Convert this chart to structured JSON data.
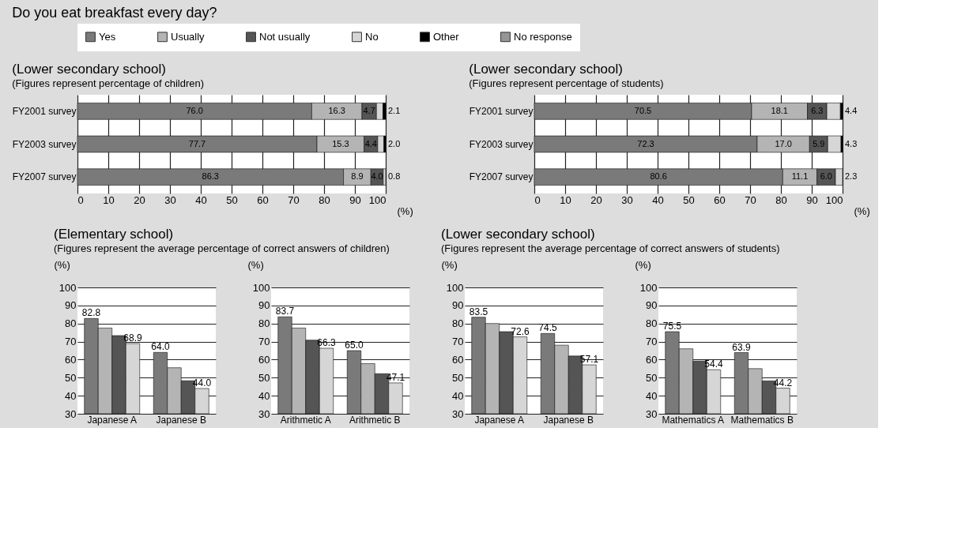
{
  "chart_data": [
    {
      "type": "bar",
      "orientation": "horizontal",
      "stacked": true,
      "title": "(Lower secondary school)",
      "subtitle": "(Figures represent percentage of children)",
      "annotations": [
        "Do you eat breakfast every day?"
      ],
      "xlabel": "(%)",
      "categories": [
        "FY2001 survey",
        "FY2003 survey",
        "FY2007 survey"
      ],
      "xlim": [
        0,
        100
      ],
      "xticks": [
        0,
        10,
        20,
        30,
        40,
        50,
        60,
        70,
        80,
        90,
        100
      ],
      "grid": "x",
      "legend": "top",
      "series": [
        {
          "name": "Yes",
          "color": "#7a7a7a",
          "values": [
            76.0,
            77.7,
            86.3
          ],
          "value_labels": [
            "76.0",
            "77.7",
            "86.3"
          ]
        },
        {
          "name": "Usually",
          "color": "#b4b4b4",
          "values": [
            16.3,
            15.3,
            8.9
          ],
          "value_labels": [
            "16.3",
            "15.3",
            "8.9"
          ]
        },
        {
          "name": "Not usually",
          "color": "#555555",
          "values": [
            4.7,
            4.4,
            4.0
          ],
          "value_labels": [
            "4.7",
            "4.4",
            "4.0"
          ]
        },
        {
          "name": "No",
          "color": "#d6d6d6",
          "values": [
            2.1,
            2.0,
            0.8
          ],
          "value_labels": [
            "2.1",
            "2.0",
            "0.8"
          ]
        },
        {
          "name": "Other",
          "color": "#000000",
          "values": [
            0.9,
            0.6,
            null
          ]
        },
        {
          "name": "No response",
          "color": "#969696",
          "values": [
            null,
            null,
            null
          ]
        }
      ]
    },
    {
      "type": "bar",
      "orientation": "horizontal",
      "stacked": true,
      "title": "(Lower secondary school)",
      "subtitle": "(Figures represent percentage of students)",
      "xlabel": "(%)",
      "categories": [
        "FY2001 survey",
        "FY2003 survey",
        "FY2007 survey"
      ],
      "xlim": [
        0,
        100
      ],
      "xticks": [
        0,
        10,
        20,
        30,
        40,
        50,
        60,
        70,
        80,
        90,
        100
      ],
      "grid": "x",
      "series": [
        {
          "color": "#7a7a7a",
          "values": [
            70.5,
            72.3,
            80.6
          ],
          "value_labels": [
            "70.5",
            "72.3",
            "80.6"
          ]
        },
        {
          "color": "#b4b4b4",
          "values": [
            18.1,
            17.0,
            11.1
          ],
          "value_labels": [
            "18.1",
            "17.0",
            "11.1"
          ]
        },
        {
          "color": "#555555",
          "values": [
            6.3,
            5.9,
            6.0
          ],
          "value_labels": [
            "6.3",
            "5.9",
            "6.0"
          ]
        },
        {
          "color": "#d6d6d6",
          "values": [
            4.4,
            4.3,
            2.3
          ],
          "value_labels": [
            "4.4",
            "4.3",
            "2.3"
          ]
        },
        {
          "color": "#000000",
          "values": [
            0.7,
            0.5,
            null
          ]
        }
      ]
    },
    {
      "type": "bar",
      "title": "(Elementary school)",
      "subtitle": "(Figures represent the average percentage of correct answers of children)",
      "ylabel": "(%)",
      "categories": [
        "Japanese A",
        "Japanese B"
      ],
      "ylim": [
        30,
        100
      ],
      "yticks": [
        30,
        40,
        50,
        60,
        70,
        80,
        90,
        100
      ],
      "grid": "y",
      "series": [
        {
          "color": "#7a7a7a",
          "values": [
            82.8,
            64.0
          ],
          "value_labels": [
            "82.8",
            "64.0"
          ]
        },
        {
          "color": "#b4b4b4",
          "values": [
            77.5,
            55.5
          ]
        },
        {
          "color": "#555555",
          "values": [
            73.3,
            48.3
          ]
        },
        {
          "color": "#d6d6d6",
          "values": [
            68.9,
            44.0
          ],
          "value_labels": [
            "68.9",
            "44.0"
          ]
        }
      ]
    },
    {
      "type": "bar",
      "ylabel": "(%)",
      "categories": [
        "Arithmetic A",
        "Arithmetic B"
      ],
      "ylim": [
        30,
        100
      ],
      "yticks": [
        30,
        40,
        50,
        60,
        70,
        80,
        90,
        100
      ],
      "grid": "y",
      "series": [
        {
          "color": "#7a7a7a",
          "values": [
            83.7,
            65.0
          ],
          "value_labels": [
            "83.7",
            "65.0"
          ]
        },
        {
          "color": "#b4b4b4",
          "values": [
            77.5,
            57.8
          ]
        },
        {
          "color": "#555555",
          "values": [
            70.8,
            52.2
          ]
        },
        {
          "color": "#d6d6d6",
          "values": [
            66.3,
            47.1
          ],
          "value_labels": [
            "66.3",
            "47.1"
          ]
        }
      ]
    },
    {
      "type": "bar",
      "title": "(Lower secondary school)",
      "subtitle": "(Figures represent the average percentage of correct answers of students)",
      "ylabel": "(%)",
      "categories": [
        "Japanese A",
        "Japanese B"
      ],
      "ylim": [
        30,
        100
      ],
      "yticks": [
        30,
        40,
        50,
        60,
        70,
        80,
        90,
        100
      ],
      "grid": "y",
      "series": [
        {
          "color": "#7a7a7a",
          "values": [
            83.5,
            74.5
          ],
          "value_labels": [
            "83.5",
            "74.5"
          ]
        },
        {
          "color": "#b4b4b4",
          "values": [
            80.0,
            68.0
          ]
        },
        {
          "color": "#555555",
          "values": [
            75.5,
            62.0
          ]
        },
        {
          "color": "#d6d6d6",
          "values": [
            72.6,
            57.1
          ],
          "value_labels": [
            "72.6",
            "57.1"
          ]
        }
      ]
    },
    {
      "type": "bar",
      "ylabel": "(%)",
      "categories": [
        "Mathematics A",
        "Mathematics B"
      ],
      "ylim": [
        30,
        100
      ],
      "yticks": [
        30,
        40,
        50,
        60,
        70,
        80,
        90,
        100
      ],
      "grid": "y",
      "series": [
        {
          "color": "#7a7a7a",
          "values": [
            75.5,
            63.9
          ],
          "value_labels": [
            "75.5",
            "63.9"
          ]
        },
        {
          "color": "#b4b4b4",
          "values": [
            66.0,
            55.0
          ]
        },
        {
          "color": "#555555",
          "values": [
            59.2,
            48.2
          ]
        },
        {
          "color": "#d6d6d6",
          "values": [
            54.4,
            44.2
          ],
          "value_labels": [
            "54.4",
            "44.2"
          ]
        }
      ]
    }
  ]
}
